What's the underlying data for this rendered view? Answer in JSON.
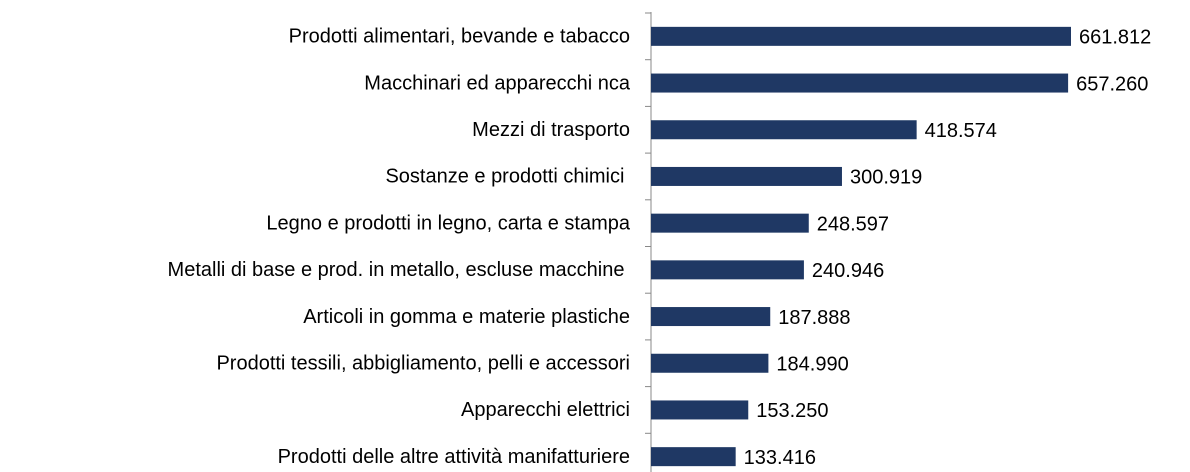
{
  "chart_data": {
    "type": "bar",
    "orientation": "horizontal",
    "categories": [
      "Prodotti alimentari, bevande e tabacco",
      "Macchinari ed apparecchi nca",
      "Mezzi di trasporto",
      "Sostanze e prodotti chimici ",
      "Legno e prodotti in legno, carta e stampa",
      "Metalli di base e prod. in metallo, escluse macchine ",
      "Articoli in gomma e materie plastiche",
      "Prodotti tessili, abbigliamento, pelli e accessori",
      "Apparecchi elettrici",
      "Prodotti delle altre attività manifatturiere"
    ],
    "values": [
      661812,
      657260,
      418574,
      300919,
      248597,
      240946,
      187888,
      184990,
      153250,
      133416
    ],
    "value_labels": [
      "661.812",
      "657.260",
      "418.574",
      "300.919",
      "248.597",
      "240.946",
      "187.888",
      "184.990",
      "153.250",
      "133.416"
    ],
    "color": "#1f3864"
  }
}
